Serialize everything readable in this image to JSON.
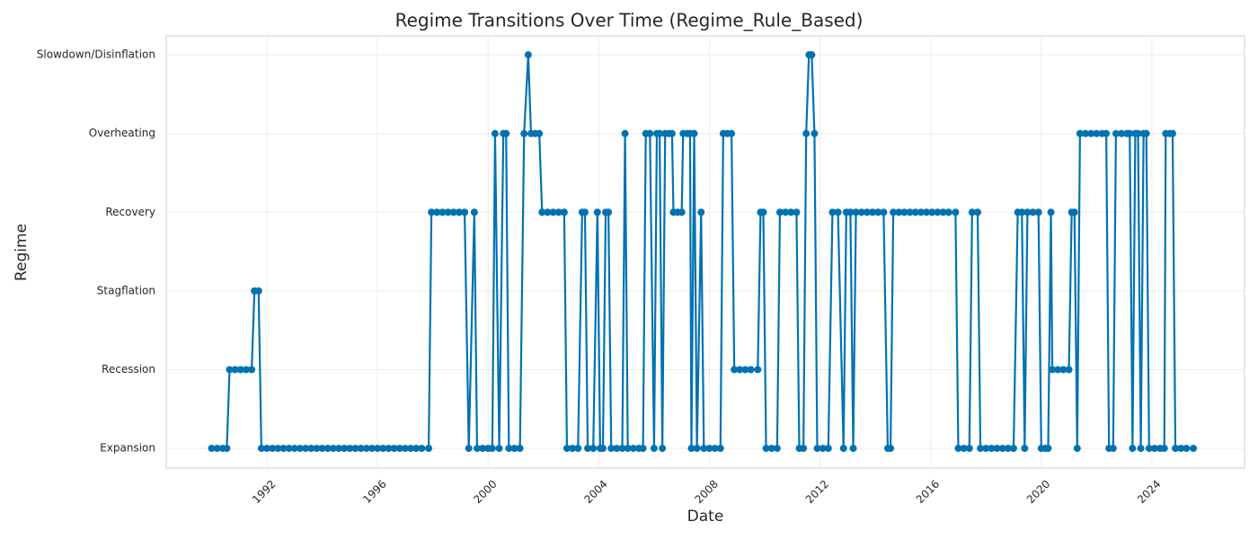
{
  "chart_data": {
    "type": "line",
    "title": "Regime Transitions Over Time (Regime_Rule_Based)",
    "x_label": "Date",
    "y_label": "Regime",
    "x": [
      1990,
      1990.2,
      1990.4,
      1990.55,
      1990.65,
      1990.85,
      1991.05,
      1991.25,
      1991.45,
      1991.55,
      1991.7,
      1991.8,
      1992,
      1992.2,
      1992.4,
      1992.6,
      1992.8,
      1993,
      1993.2,
      1993.4,
      1993.6,
      1993.8,
      1994,
      1994.2,
      1994.4,
      1994.6,
      1994.8,
      1995,
      1995.2,
      1995.4,
      1995.6,
      1995.8,
      1996,
      1996.2,
      1996.4,
      1996.6,
      1996.8,
      1997,
      1997.2,
      1997.4,
      1997.6,
      1997.85,
      1997.95,
      1998.15,
      1998.35,
      1998.55,
      1998.75,
      1998.95,
      1999.15,
      1999.3,
      1999.5,
      1999.6,
      1999.8,
      2000,
      2000.15,
      2000.25,
      2000.4,
      2000.55,
      2000.65,
      2000.75,
      2000.95,
      2001.15,
      2001.3,
      2001.45,
      2001.55,
      2001.7,
      2001.85,
      2001.95,
      2002.15,
      2002.35,
      2002.55,
      2002.75,
      2002.85,
      2003.05,
      2003.25,
      2003.4,
      2003.5,
      2003.6,
      2003.8,
      2003.95,
      2004.05,
      2004.15,
      2004.25,
      2004.35,
      2004.45,
      2004.65,
      2004.85,
      2004.95,
      2005.05,
      2005.25,
      2005.45,
      2005.6,
      2005.7,
      2005.85,
      2006,
      2006.1,
      2006.2,
      2006.3,
      2006.4,
      2006.55,
      2006.65,
      2006.7,
      2006.85,
      2007,
      2007.05,
      2007.2,
      2007.3,
      2007.35,
      2007.45,
      2007.55,
      2007.7,
      2007.8,
      2008,
      2008.2,
      2008.4,
      2008.5,
      2008.65,
      2008.8,
      2008.9,
      2009.1,
      2009.3,
      2009.5,
      2009.75,
      2009.85,
      2009.95,
      2010.05,
      2010.25,
      2010.45,
      2010.55,
      2010.75,
      2010.95,
      2011.15,
      2011.25,
      2011.4,
      2011.5,
      2011.6,
      2011.7,
      2011.8,
      2011.9,
      2012.1,
      2012.3,
      2012.45,
      2012.65,
      2012.85,
      2012.95,
      2013.1,
      2013.2,
      2013.3,
      2013.5,
      2013.7,
      2013.9,
      2014.1,
      2014.3,
      2014.45,
      2014.55,
      2014.65,
      2014.85,
      2015.05,
      2015.25,
      2015.45,
      2015.65,
      2015.85,
      2016.05,
      2016.25,
      2016.45,
      2016.65,
      2016.9,
      2017,
      2017.2,
      2017.4,
      2017.5,
      2017.7,
      2017.8,
      2018,
      2018.2,
      2018.4,
      2018.6,
      2018.8,
      2019,
      2019.15,
      2019.3,
      2019.4,
      2019.5,
      2019.7,
      2019.9,
      2020,
      2020.15,
      2020.25,
      2020.35,
      2020.4,
      2020.6,
      2020.8,
      2021,
      2021.1,
      2021.2,
      2021.3,
      2021.4,
      2021.6,
      2021.8,
      2022,
      2022.2,
      2022.35,
      2022.45,
      2022.6,
      2022.7,
      2022.9,
      2023.1,
      2023.2,
      2023.3,
      2023.4,
      2023.5,
      2023.6,
      2023.7,
      2023.8,
      2023.9,
      2024.1,
      2024.3,
      2024.45,
      2024.5,
      2024.65,
      2024.75,
      2024.85,
      2025.05,
      2025.25,
      2025.5
    ],
    "values": [
      0,
      0,
      0,
      0,
      1,
      1,
      1,
      1,
      1,
      2,
      2,
      0,
      0,
      0,
      0,
      0,
      0,
      0,
      0,
      0,
      0,
      0,
      0,
      0,
      0,
      0,
      0,
      0,
      0,
      0,
      0,
      0,
      0,
      0,
      0,
      0,
      0,
      0,
      0,
      0,
      0,
      0,
      3,
      3,
      3,
      3,
      3,
      3,
      3,
      0,
      3,
      0,
      0,
      0,
      0,
      4,
      0,
      4,
      4,
      0,
      0,
      0,
      4,
      5,
      4,
      4,
      4,
      3,
      3,
      3,
      3,
      3,
      0,
      0,
      0,
      3,
      3,
      0,
      0,
      3,
      0,
      0,
      3,
      3,
      0,
      0,
      0,
      4,
      0,
      0,
      0,
      0,
      4,
      4,
      0,
      4,
      4,
      0,
      4,
      4,
      4,
      3,
      3,
      3,
      4,
      4,
      4,
      0,
      4,
      0,
      3,
      0,
      0,
      0,
      0,
      4,
      4,
      4,
      1,
      1,
      1,
      1,
      1,
      3,
      3,
      0,
      0,
      0,
      3,
      3,
      3,
      3,
      0,
      0,
      4,
      5,
      5,
      4,
      0,
      0,
      0,
      3,
      3,
      0,
      3,
      3,
      0,
      3,
      3,
      3,
      3,
      3,
      3,
      0,
      0,
      3,
      3,
      3,
      3,
      3,
      3,
      3,
      3,
      3,
      3,
      3,
      3,
      0,
      0,
      0,
      3,
      3,
      0,
      0,
      0,
      0,
      0,
      0,
      0,
      3,
      3,
      0,
      3,
      3,
      3,
      0,
      0,
      0,
      3,
      1,
      1,
      1,
      1,
      3,
      3,
      0,
      4,
      4,
      4,
      4,
      4,
      4,
      0,
      0,
      4,
      4,
      4,
      4,
      0,
      4,
      4,
      0,
      4,
      4,
      0,
      0,
      0,
      0,
      4,
      4,
      4,
      0,
      0,
      0,
      0
    ],
    "color": "#0072b2",
    "xlim": [
      1988.36,
      2027.35
    ],
    "xticks": [
      1992,
      1996,
      2000,
      2004,
      2008,
      2012,
      2016,
      2020,
      2024
    ],
    "ylim": [
      -0.25,
      5.24
    ],
    "yticks": [
      {
        "value": 0,
        "label": "Expansion"
      },
      {
        "value": 1,
        "label": "Recession"
      },
      {
        "value": 2,
        "label": "Stagflation"
      },
      {
        "value": 3,
        "label": "Recovery"
      },
      {
        "value": 4,
        "label": "Overheating"
      },
      {
        "value": 5,
        "label": "Slowdown/Disinflation"
      }
    ],
    "grid": true
  }
}
